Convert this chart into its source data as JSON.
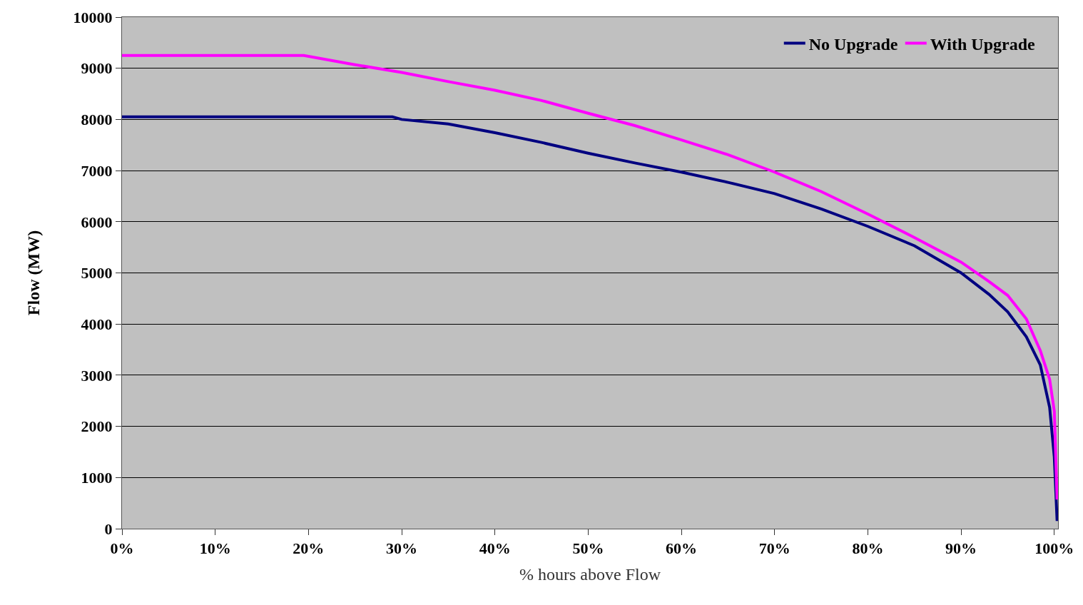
{
  "chart_data": {
    "type": "line",
    "xlabel": "% hours above Flow",
    "ylabel": "Flow (MW)",
    "xlim": [
      0,
      100.4
    ],
    "ylim": [
      0,
      10000
    ],
    "xticks": [
      {
        "value": 0,
        "label": "0%"
      },
      {
        "value": 10,
        "label": "10%"
      },
      {
        "value": 20,
        "label": "20%"
      },
      {
        "value": 30,
        "label": "30%"
      },
      {
        "value": 40,
        "label": "40%"
      },
      {
        "value": 50,
        "label": "50%"
      },
      {
        "value": 60,
        "label": "60%"
      },
      {
        "value": 70,
        "label": "70%"
      },
      {
        "value": 80,
        "label": "80%"
      },
      {
        "value": 90,
        "label": "90%"
      },
      {
        "value": 100,
        "label": "100%"
      }
    ],
    "yticks": [
      0,
      1000,
      2000,
      3000,
      4000,
      5000,
      6000,
      7000,
      8000,
      9000,
      10000
    ],
    "grid": "y",
    "legend": "top right",
    "marker": "none",
    "line_style": "solid",
    "series": [
      {
        "name": "No Upgrade",
        "color": "#000080",
        "x": [
          0,
          29,
          30,
          35,
          40,
          45,
          50,
          55,
          60,
          65,
          70,
          75,
          80,
          85,
          90,
          93,
          95,
          97,
          98.5,
          99.5,
          100,
          100.3
        ],
        "values": [
          8050,
          8050,
          8000,
          7910,
          7740,
          7550,
          7340,
          7150,
          6970,
          6770,
          6550,
          6250,
          5910,
          5530,
          5000,
          4580,
          4240,
          3750,
          3200,
          2370,
          1400,
          150
        ]
      },
      {
        "name": "With Upgrade",
        "color": "#ff00ff",
        "x": [
          0,
          19.5,
          25,
          30,
          35,
          40,
          45,
          50,
          55,
          60,
          65,
          70,
          75,
          80,
          85,
          90,
          93,
          95,
          97,
          98.5,
          99.5,
          100,
          100.3
        ],
        "values": [
          9250,
          9250,
          9070,
          8920,
          8740,
          8570,
          8370,
          8120,
          7880,
          7600,
          7310,
          6970,
          6590,
          6150,
          5690,
          5210,
          4830,
          4560,
          4100,
          3480,
          2920,
          2300,
          570
        ]
      }
    ]
  }
}
